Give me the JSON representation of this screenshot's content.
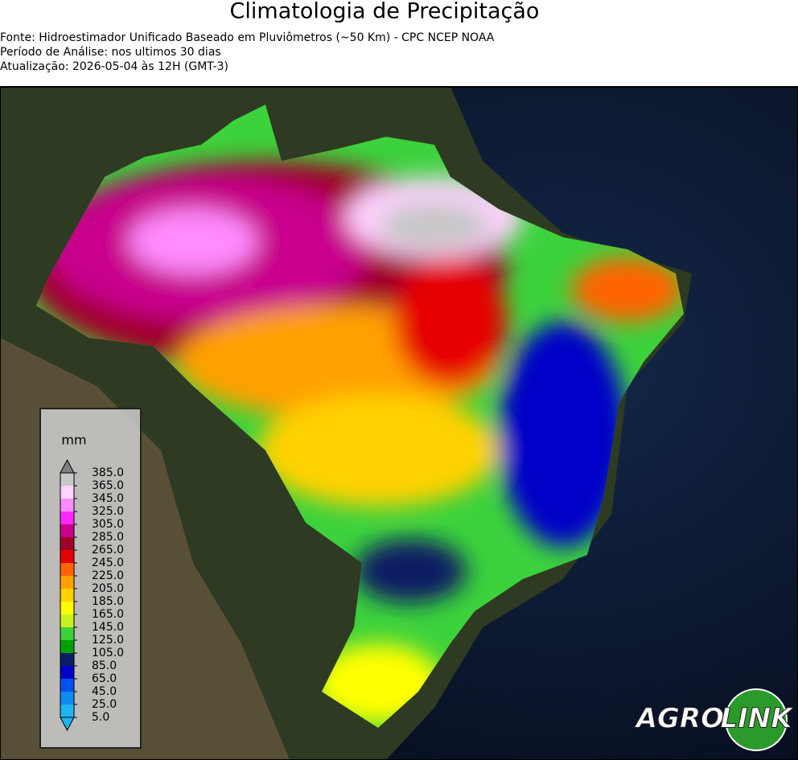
{
  "header": {
    "title": "Climatologia de Precipitação",
    "lines": [
      "Fonte: Hidroestimador Unificado Baseado em Pluviômetros (~50 Km) - CPC NCEP NOAA",
      "Período de Análise: nos ultimos 30 dias",
      "Atualização: 2026-05-04 às 12H (GMT-3)"
    ]
  },
  "legend": {
    "unit": "mm",
    "ticks": [
      {
        "value": 5,
        "label": "5.0"
      },
      {
        "value": 25,
        "label": "25.0"
      },
      {
        "value": 45,
        "label": "45.0"
      },
      {
        "value": 65,
        "label": "65.0"
      },
      {
        "value": 85,
        "label": "85.0"
      },
      {
        "value": 105,
        "label": "105.0"
      },
      {
        "value": 125,
        "label": "125.0"
      },
      {
        "value": 145,
        "label": "145.0"
      },
      {
        "value": 165,
        "label": "165.0"
      },
      {
        "value": 185,
        "label": "185.0"
      },
      {
        "value": 205,
        "label": "205.0"
      },
      {
        "value": 225,
        "label": "225.0"
      },
      {
        "value": 245,
        "label": "245.0"
      },
      {
        "value": 265,
        "label": "265.0"
      },
      {
        "value": 285,
        "label": "285.0"
      },
      {
        "value": 305,
        "label": "305.0"
      },
      {
        "value": 325,
        "label": "325.0"
      },
      {
        "value": 345,
        "label": "345.0"
      },
      {
        "value": 365,
        "label": "365.0"
      },
      {
        "value": 385,
        "label": "385.0"
      }
    ],
    "colors": [
      "#1eb4f0",
      "#0a8cf0",
      "#0050f0",
      "#0000c8",
      "#0a1e64",
      "#00a000",
      "#3cd23c",
      "#c8f01e",
      "#ffff00",
      "#ffd200",
      "#ffa000",
      "#ff6400",
      "#e60000",
      "#a00028",
      "#c8008c",
      "#ff28ff",
      "#ff8cff",
      "#ffd2ff",
      "#c8c8c8"
    ],
    "under_color": "#1eb4f0",
    "over_color": "#808080"
  },
  "logo": {
    "left": "AGRO",
    "right": "LINK"
  }
}
